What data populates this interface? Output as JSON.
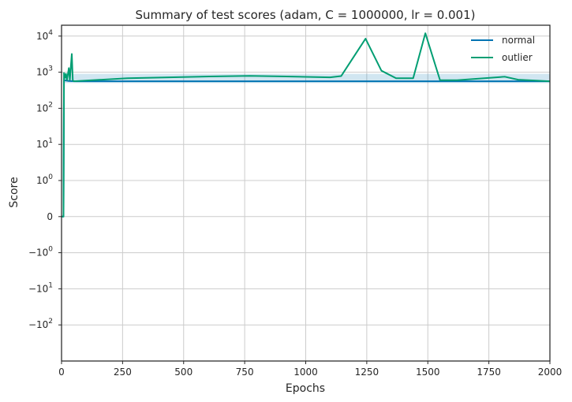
{
  "chart_data": {
    "type": "line",
    "title": "Summary of test scores (adam, C = 1000000, lr = 0.001)",
    "xlabel": "Epochs",
    "ylabel": "Score",
    "yscale": "symlog",
    "xlim": [
      0,
      2000
    ],
    "ylim": [
      -1000,
      20000
    ],
    "x_ticks": [
      0,
      250,
      500,
      750,
      1000,
      1250,
      1500,
      1750,
      2000
    ],
    "y_ticks": [
      {
        "value": 10000,
        "base": "10",
        "exp": "4",
        "sign": ""
      },
      {
        "value": 1000,
        "base": "10",
        "exp": "3",
        "sign": ""
      },
      {
        "value": 100,
        "base": "10",
        "exp": "2",
        "sign": ""
      },
      {
        "value": 10,
        "base": "10",
        "exp": "1",
        "sign": ""
      },
      {
        "value": 1,
        "base": "10",
        "exp": "0",
        "sign": ""
      },
      {
        "value": 0,
        "base": "0",
        "exp": "",
        "sign": ""
      },
      {
        "value": -1,
        "base": "10",
        "exp": "0",
        "sign": "−"
      },
      {
        "value": -10,
        "base": "10",
        "exp": "1",
        "sign": "−"
      },
      {
        "value": -100,
        "base": "10",
        "exp": "2",
        "sign": "−"
      }
    ],
    "grid": true,
    "legend_position": "top-right",
    "baseline": 560,
    "band": [
      500,
      900
    ],
    "series": [
      {
        "name": "normal",
        "color": "#0173b2",
        "points": [
          [
            0,
            0
          ],
          [
            8,
            0
          ],
          [
            10,
            600
          ],
          [
            30,
            570
          ],
          [
            60,
            560
          ],
          [
            2000,
            560
          ]
        ]
      },
      {
        "name": "outlier",
        "color": "#029e73",
        "points": [
          [
            0,
            0
          ],
          [
            8,
            0
          ],
          [
            10,
            950
          ],
          [
            14,
            700
          ],
          [
            18,
            900
          ],
          [
            22,
            600
          ],
          [
            30,
            1300
          ],
          [
            34,
            600
          ],
          [
            42,
            3200
          ],
          [
            46,
            600
          ],
          [
            50,
            560
          ],
          [
            270,
            680
          ],
          [
            605,
            760
          ],
          [
            770,
            790
          ],
          [
            920,
            760
          ],
          [
            1100,
            720
          ],
          [
            1145,
            780
          ],
          [
            1245,
            8500
          ],
          [
            1310,
            1100
          ],
          [
            1370,
            680
          ],
          [
            1440,
            680
          ],
          [
            1490,
            12000
          ],
          [
            1550,
            600
          ],
          [
            1620,
            600
          ],
          [
            1815,
            750
          ],
          [
            1870,
            620
          ],
          [
            2000,
            560
          ]
        ]
      }
    ]
  }
}
